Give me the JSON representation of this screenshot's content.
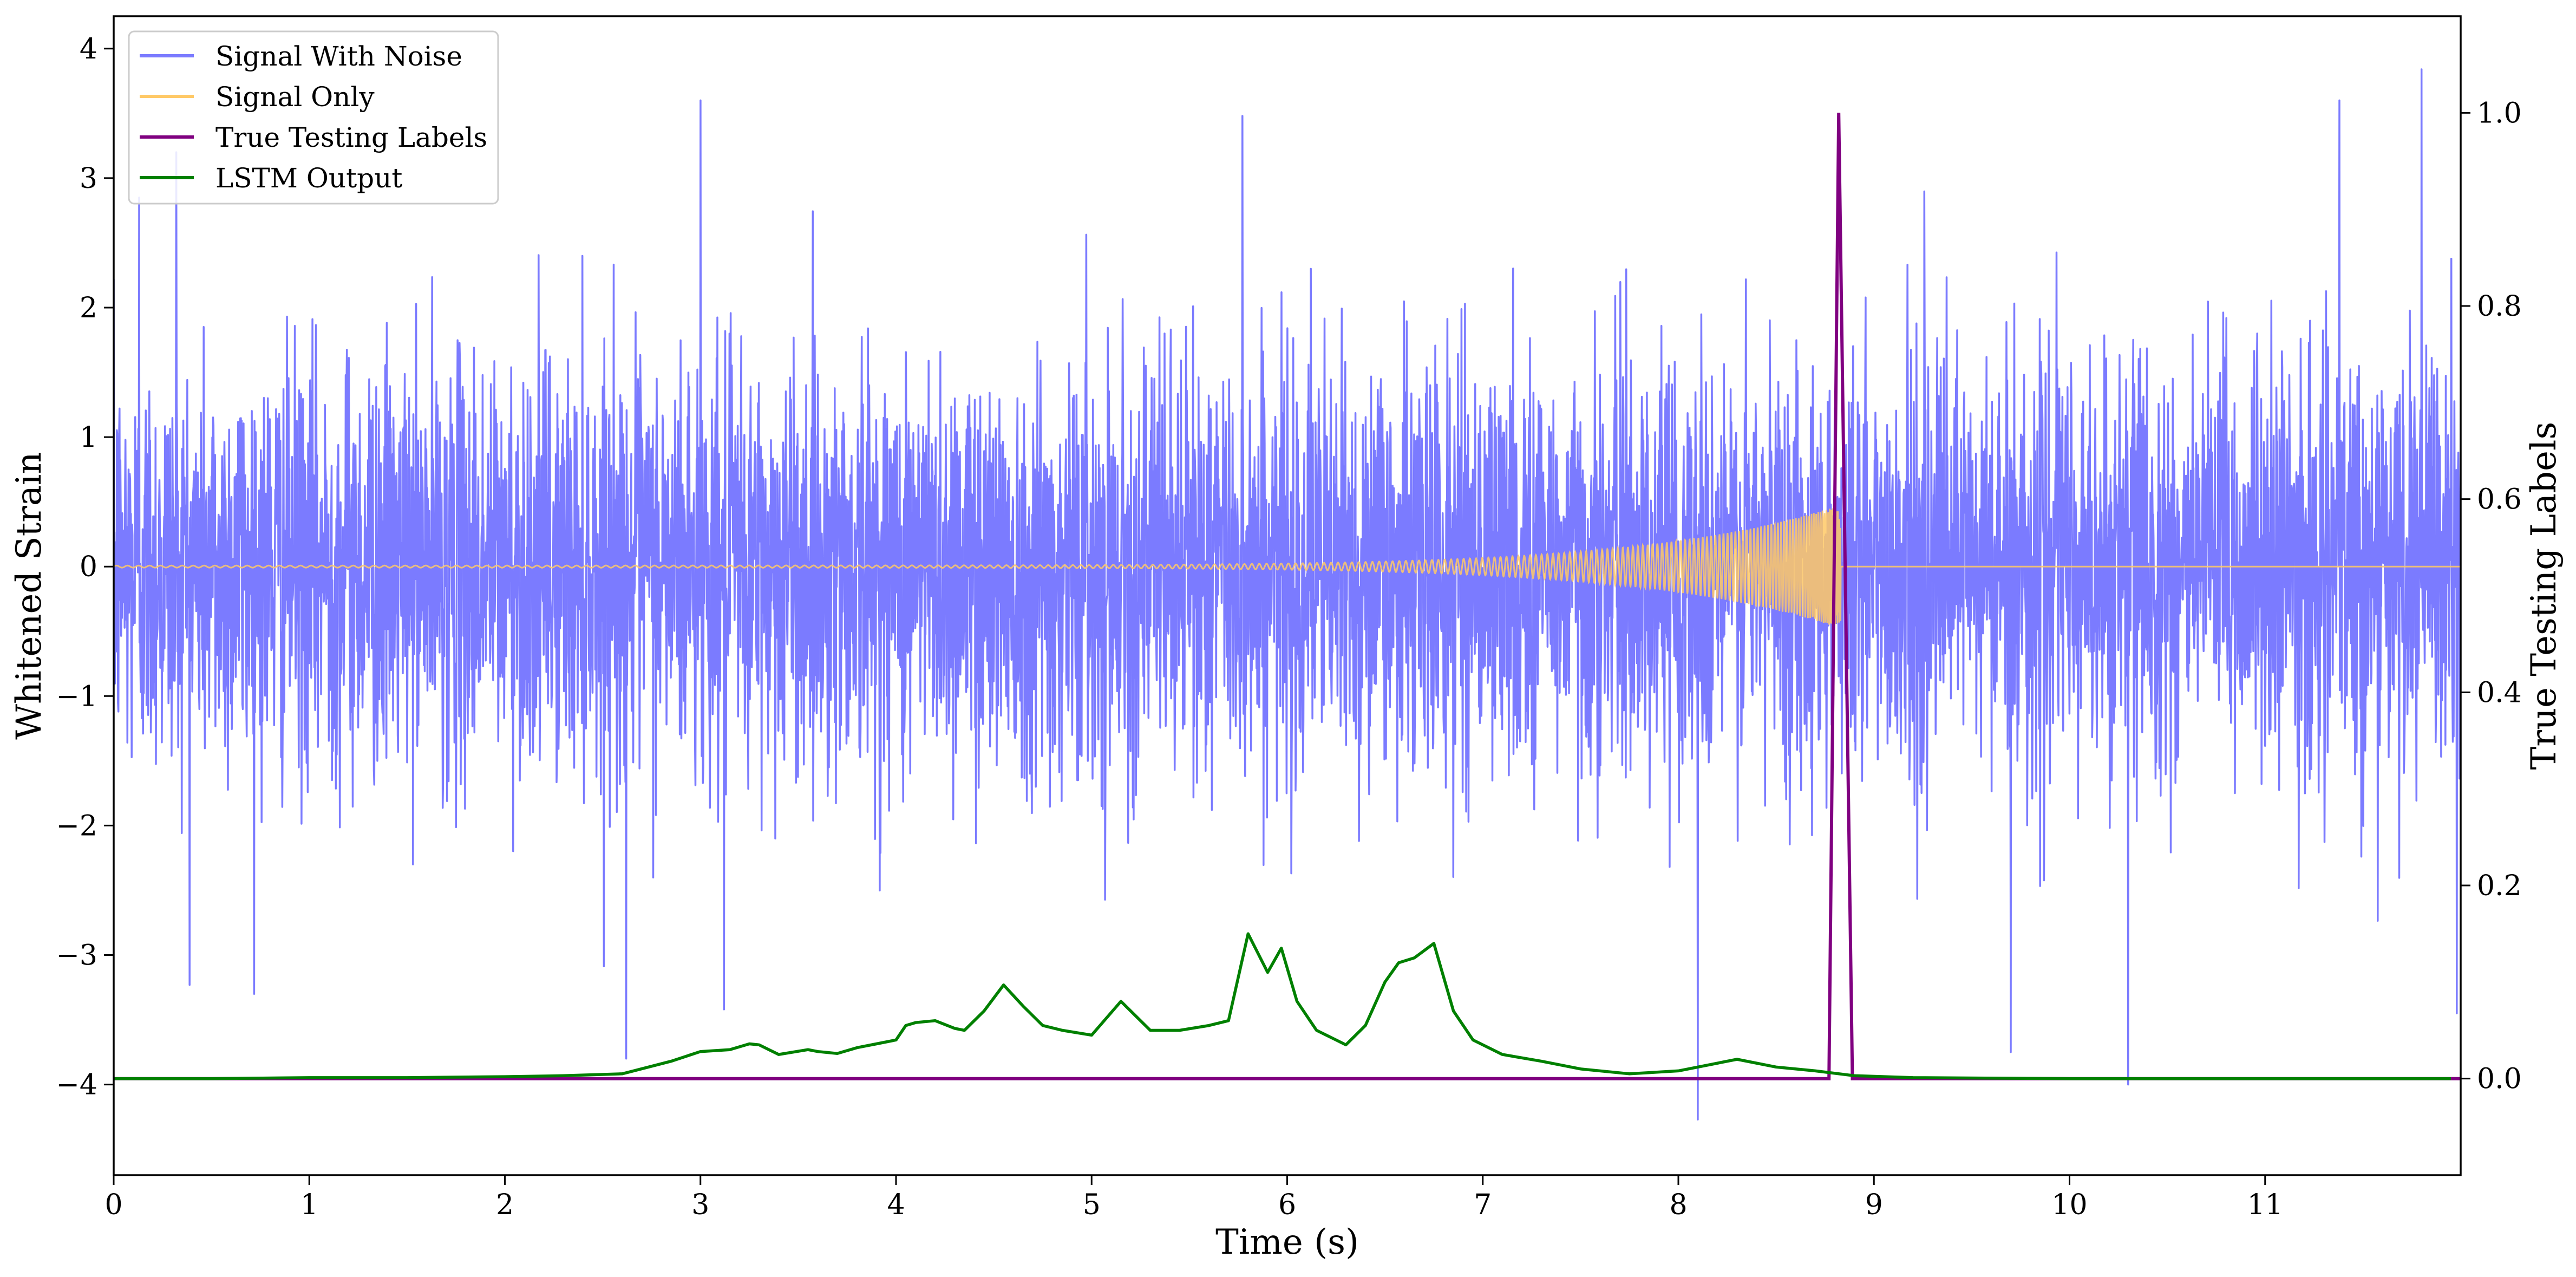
{
  "chart_data": {
    "type": "line",
    "xlabel": "Time (s)",
    "ylabel_left": "Whitened Strain",
    "ylabel_right": "True Testing Labels",
    "xlim": [
      0,
      12
    ],
    "ylim_left": [
      -4.7,
      4.25
    ],
    "ylim_right": [
      -0.1,
      1.1
    ],
    "xticks": [
      0,
      1,
      2,
      3,
      4,
      5,
      6,
      7,
      8,
      9,
      10,
      11
    ],
    "xtick_labels": [
      "0",
      "1",
      "2",
      "3",
      "4",
      "5",
      "6",
      "7",
      "8",
      "9",
      "10",
      "11"
    ],
    "yticks_left": [
      -4,
      -3,
      -2,
      -1,
      0,
      1,
      2,
      3,
      4
    ],
    "ytick_labels_left": [
      "−4",
      "−3",
      "−2",
      "−1",
      "0",
      "1",
      "2",
      "3",
      "4"
    ],
    "yticks_right": [
      0.0,
      0.2,
      0.4,
      0.6,
      0.8,
      1.0
    ],
    "ytick_labels_right": [
      "0.0",
      "0.2",
      "0.4",
      "0.6",
      "0.8",
      "1.0"
    ],
    "grid": false,
    "legend_position": "top-left",
    "series": [
      {
        "name": "Signal With Noise",
        "axis": "left",
        "color": "#7b7bff",
        "description": "dense noise, approx. std 0.8, peaks up to ~3.8 and down to ~-4.3",
        "noise_std": 0.8,
        "t_range": [
          0,
          12
        ],
        "notable_peaks": [
          {
            "x": 0.13,
            "y": 2.85
          },
          {
            "x": 0.32,
            "y": 3.2
          },
          {
            "x": 2.62,
            "y": -3.8
          },
          {
            "x": 3.0,
            "y": 3.6
          },
          {
            "x": 3.12,
            "y": -3.42
          },
          {
            "x": 5.77,
            "y": 3.48
          },
          {
            "x": 8.1,
            "y": -4.27
          },
          {
            "x": 9.7,
            "y": -3.75
          },
          {
            "x": 10.3,
            "y": -4.0
          },
          {
            "x": 11.38,
            "y": 3.6
          },
          {
            "x": 11.8,
            "y": 3.84
          },
          {
            "x": 11.98,
            "y": -3.45
          }
        ]
      },
      {
        "name": "Signal Only",
        "axis": "left",
        "color": "#ffc966",
        "description": "chirp: small oscillation growing to ~0.45 amplitude near t=8.83 s, then flat at 0",
        "t_merge": 8.83,
        "max_amplitude": 0.45
      },
      {
        "name": "True Testing Labels",
        "axis": "right",
        "color": "#800080",
        "x": [
          0,
          8.77,
          8.82,
          8.89,
          12
        ],
        "y": [
          0,
          0,
          1.0,
          0,
          0
        ]
      },
      {
        "name": "LSTM Output",
        "axis": "right",
        "color": "#008000",
        "x": [
          0,
          0.5,
          1.0,
          1.5,
          2.0,
          2.3,
          2.6,
          2.85,
          3.0,
          3.15,
          3.25,
          3.3,
          3.4,
          3.55,
          3.6,
          3.7,
          3.8,
          3.9,
          4.0,
          4.05,
          4.1,
          4.2,
          4.3,
          4.35,
          4.45,
          4.55,
          4.65,
          4.75,
          4.85,
          5.0,
          5.15,
          5.3,
          5.45,
          5.6,
          5.7,
          5.8,
          5.9,
          5.97,
          6.05,
          6.15,
          6.25,
          6.3,
          6.4,
          6.5,
          6.57,
          6.65,
          6.75,
          6.85,
          6.95,
          7.1,
          7.3,
          7.5,
          7.75,
          8.0,
          8.3,
          8.5,
          8.7,
          8.9,
          9.2,
          10.0,
          11.0,
          11.95
        ],
        "y": [
          0.0,
          0.0,
          0.001,
          0.001,
          0.002,
          0.003,
          0.005,
          0.018,
          0.028,
          0.03,
          0.036,
          0.035,
          0.025,
          0.03,
          0.028,
          0.026,
          0.032,
          0.036,
          0.04,
          0.055,
          0.058,
          0.06,
          0.052,
          0.05,
          0.07,
          0.097,
          0.075,
          0.055,
          0.05,
          0.045,
          0.08,
          0.05,
          0.05,
          0.055,
          0.06,
          0.15,
          0.11,
          0.135,
          0.08,
          0.05,
          0.04,
          0.035,
          0.055,
          0.1,
          0.12,
          0.125,
          0.14,
          0.07,
          0.04,
          0.025,
          0.018,
          0.01,
          0.005,
          0.008,
          0.02,
          0.012,
          0.008,
          0.003,
          0.001,
          0.0,
          0.0,
          0.0
        ]
      }
    ]
  }
}
